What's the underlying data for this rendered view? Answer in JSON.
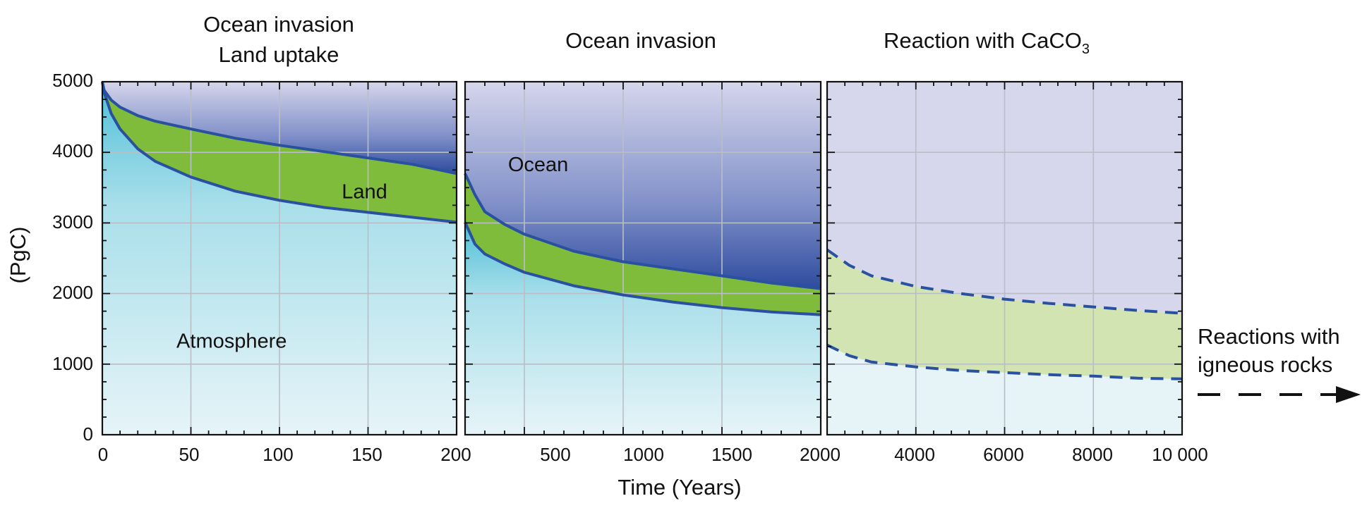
{
  "chart_data": {
    "type": "area",
    "ylabel": "(PgC)",
    "xlabel": "Time (Years)",
    "ylim": [
      0,
      5000
    ],
    "yticks": [
      "0",
      "1000",
      "2000",
      "3000",
      "4000",
      "5000"
    ],
    "grid": true,
    "colors": {
      "atmosphere": "#e6f4f8",
      "atmosphere_gradient": "#5fc6dc",
      "land": "#7fbc3c",
      "land_light": "#d3e4b3",
      "ocean": "#d6d6ec",
      "ocean_gradient": "#2d4b9e",
      "boundary": "#2a50a0"
    },
    "panels": [
      {
        "title_lines": [
          "Ocean invasion",
          "Land uptake"
        ],
        "xlim": [
          0,
          200
        ],
        "xticks": [
          "0",
          "50",
          "100",
          "150",
          "200"
        ],
        "x": [
          0,
          1,
          5,
          10,
          20,
          30,
          50,
          75,
          100,
          125,
          150,
          175,
          200
        ],
        "series": [
          {
            "key": "atm_land",
            "values": [
              5000,
              4850,
              4550,
              4330,
              4050,
              3870,
              3650,
              3450,
              3320,
              3220,
              3150,
              3080,
              3010
            ]
          },
          {
            "key": "land_ocean",
            "values": [
              5000,
              4880,
              4740,
              4640,
              4520,
              4440,
              4330,
              4200,
              4100,
              4010,
              3920,
              3830,
              3700
            ]
          }
        ],
        "labels": [
          {
            "text": "Land",
            "x": 148,
            "y": 3450
          },
          {
            "text": "Atmosphere",
            "x": 73,
            "y": 1330
          }
        ]
      },
      {
        "title_lines": [
          "Ocean invasion"
        ],
        "xlim": [
          200,
          2000
        ],
        "xticks": [
          "200",
          "500",
          "1000",
          "1500",
          "2000"
        ],
        "x": [
          200,
          250,
          300,
          400,
          500,
          750,
          1000,
          1250,
          1500,
          1750,
          2000
        ],
        "series": [
          {
            "key": "atm_land",
            "values": [
              3010,
              2700,
              2560,
              2420,
              2300,
              2110,
              1980,
              1880,
              1800,
              1740,
              1700
            ]
          },
          {
            "key": "land_ocean",
            "values": [
              3700,
              3400,
              3160,
              2980,
              2840,
              2600,
              2450,
              2350,
              2250,
              2150,
              2070
            ]
          }
        ],
        "labels": [
          {
            "text": "Ocean",
            "x": 570,
            "y": 3830
          }
        ]
      },
      {
        "title_lines": [
          "Reaction with CaCO",
          "3"
        ],
        "xlim": [
          2000,
          10000
        ],
        "xticks": [
          "2000",
          "4000",
          "6000",
          "8000",
          "10 000"
        ],
        "x": [
          2000,
          2500,
          3000,
          4000,
          5000,
          6000,
          7000,
          8000,
          9000,
          10000
        ],
        "series": [
          {
            "key": "atm_land",
            "values": [
              1270,
              1120,
              1030,
              960,
              910,
              880,
              850,
              830,
              800,
              790
            ]
          },
          {
            "key": "land_ocean",
            "values": [
              2620,
              2400,
              2250,
              2100,
              2000,
              1920,
              1860,
              1810,
              1760,
              1720
            ]
          }
        ],
        "labels": []
      }
    ],
    "annotation": {
      "lines": [
        "Reactions with",
        "igneous rocks"
      ]
    }
  }
}
